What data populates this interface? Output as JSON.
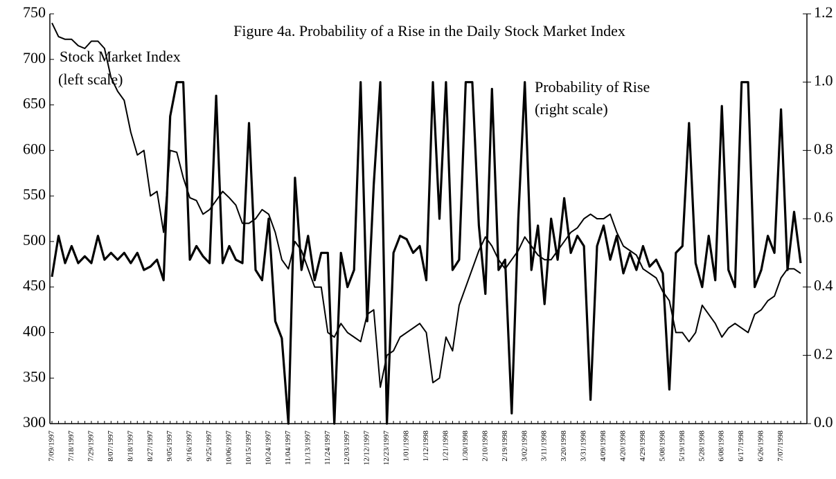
{
  "chart_data": {
    "type": "line",
    "title": "Figure 4a. Probability of a Rise in the Daily Stock Market Index",
    "annotations": [
      "Stock Market Index",
      "(left scale)",
      "Probability of Rise",
      "(right scale)"
    ],
    "categories": [
      "7/09/1997",
      null,
      null,
      "7/18/1997",
      null,
      null,
      "7/29/1997",
      null,
      null,
      "8/07/1997",
      null,
      null,
      "8/18/1997",
      null,
      null,
      "8/27/1997",
      null,
      null,
      "9/05/1997",
      null,
      null,
      "9/16/1997",
      null,
      null,
      "9/25/1997",
      null,
      null,
      "10/06/1997",
      null,
      null,
      "10/15/1997",
      null,
      null,
      "10/24/1997",
      null,
      null,
      "11/04/1997",
      null,
      null,
      "11/13/1997",
      null,
      null,
      "11/24/1997",
      null,
      null,
      "12/03/1997",
      null,
      null,
      "12/12/1997",
      null,
      null,
      "12/23/1997",
      null,
      null,
      "1/01/1998",
      null,
      null,
      "1/12/1998",
      null,
      null,
      "1/21/1998",
      null,
      null,
      "1/30/1998",
      null,
      null,
      "2/10/1998",
      null,
      null,
      "2/19/1998",
      null,
      null,
      "3/02/1998",
      null,
      null,
      "3/11/1998",
      null,
      null,
      "3/20/1998",
      null,
      null,
      "3/31/1998",
      null,
      null,
      "4/09/1998",
      null,
      null,
      "4/20/1998",
      null,
      null,
      "4/29/1998",
      null,
      null,
      "5/08/1998",
      null,
      null,
      "5/19/1998",
      null,
      null,
      "5/28/1998",
      null,
      null,
      "6/08/1998",
      null,
      null,
      "6/17/1998",
      null,
      null,
      "6/26/1998",
      null,
      null,
      "7/07/1998",
      null,
      null,
      null
    ],
    "series": [
      {
        "name": "Stock Market Index",
        "color": "#000000",
        "axis": "y",
        "values": [
          740,
          725,
          722,
          722,
          715,
          712,
          720,
          720,
          712,
          680,
          665,
          655,
          620,
          595,
          600,
          550,
          555,
          510,
          600,
          598,
          570,
          548,
          545,
          530,
          535,
          545,
          555,
          548,
          540,
          520,
          520,
          525,
          535,
          530,
          510,
          480,
          470,
          500,
          490,
          470,
          450,
          450,
          400,
          395,
          410,
          400,
          395,
          390,
          420,
          425,
          340,
          375,
          380,
          395,
          400,
          405,
          410,
          400,
          345,
          350,
          395,
          380,
          430,
          450,
          470,
          490,
          505,
          495,
          480,
          470,
          480,
          490,
          505,
          495,
          485,
          480,
          480,
          490,
          500,
          510,
          515,
          525,
          530,
          525,
          525,
          530,
          510,
          495,
          490,
          485,
          470,
          465,
          460,
          445,
          435,
          400,
          400,
          390,
          400,
          430,
          420,
          410,
          395,
          405,
          410,
          405,
          400,
          420,
          425,
          435,
          440,
          460,
          470,
          470,
          465
        ]
      },
      {
        "name": "Probability of Rise",
        "color": "#000000",
        "axis": "y2",
        "values": [
          0.43,
          0.55,
          0.47,
          0.52,
          0.47,
          0.49,
          0.47,
          0.55,
          0.48,
          0.5,
          0.48,
          0.5,
          0.47,
          0.5,
          0.45,
          0.46,
          0.48,
          0.42,
          0.9,
          1.0,
          1.0,
          0.48,
          0.52,
          0.49,
          0.47,
          0.96,
          0.47,
          0.52,
          0.48,
          0.47,
          0.88,
          0.45,
          0.42,
          0.6,
          0.3,
          0.25,
          0.0,
          0.72,
          0.45,
          0.55,
          0.42,
          0.5,
          0.5,
          0.0,
          0.5,
          0.4,
          0.45,
          1.0,
          0.3,
          0.7,
          1.0,
          0.0,
          0.5,
          0.55,
          0.54,
          0.5,
          0.52,
          0.42,
          1.0,
          0.6,
          1.0,
          0.45,
          0.48,
          1.0,
          1.0,
          0.58,
          0.38,
          0.98,
          0.45,
          0.48,
          0.03,
          0.6,
          1.0,
          0.45,
          0.58,
          0.35,
          0.6,
          0.48,
          0.66,
          0.5,
          0.55,
          0.52,
          0.07,
          0.52,
          0.58,
          0.48,
          0.55,
          0.44,
          0.5,
          0.45,
          0.52,
          0.46,
          0.48,
          0.44,
          0.1,
          0.5,
          0.52,
          0.88,
          0.47,
          0.4,
          0.55,
          0.42,
          0.93,
          0.45,
          0.4,
          1.0,
          1.0,
          0.4,
          0.45,
          0.55,
          0.5,
          0.92,
          0.45,
          0.62,
          0.47
        ]
      }
    ],
    "ylim": [
      300,
      750
    ],
    "yticks": [
      300,
      350,
      400,
      450,
      500,
      550,
      600,
      650,
      700,
      750
    ],
    "y2lim": [
      0,
      1.2
    ],
    "y2ticks": [
      {
        "value": 0,
        "label": "0.0"
      },
      0.2,
      0.4,
      0.6,
      0.8,
      {
        "value": 1,
        "label": "1.0"
      },
      1.2
    ]
  }
}
